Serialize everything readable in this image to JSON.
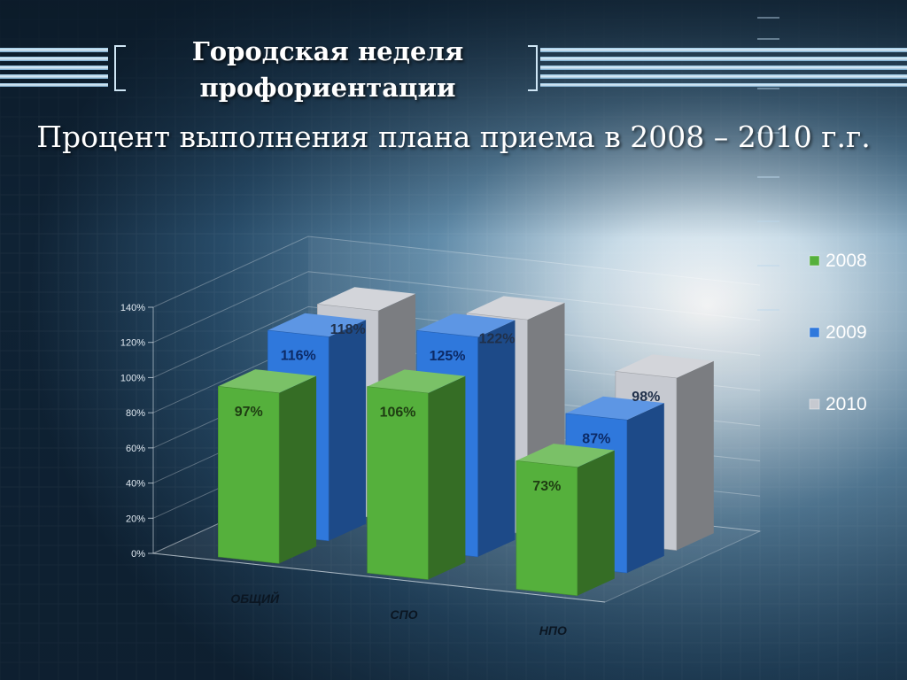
{
  "slide": {
    "title": "Городская неделя профориентации",
    "subtitle": "Процент выполнения плана приема в 2008 – 2010 г.г."
  },
  "colors": {
    "background": "#14324b",
    "series_2008": "#55b03c",
    "series_2009": "#2f78dc",
    "series_2010": "#c6c9d0",
    "label_2008": "#1e3c12",
    "label_2009": "#0c2a66",
    "label_2010": "#20304a"
  },
  "chart_data": {
    "type": "bar",
    "title": "",
    "categories": [
      "ОБЩИЙ",
      "СПО",
      "НПО"
    ],
    "series": [
      {
        "name": "2008",
        "values": [
          97,
          106,
          73
        ],
        "labels": [
          "97%",
          "106%",
          "73%"
        ]
      },
      {
        "name": "2009",
        "values": [
          116,
          125,
          87
        ],
        "labels": [
          "116%",
          "125%",
          "87%"
        ]
      },
      {
        "name": "2010",
        "values": [
          118,
          122,
          98
        ],
        "labels": [
          "118%",
          "122%",
          "98%"
        ]
      }
    ],
    "y_ticks": [
      "0%",
      "20%",
      "40%",
      "60%",
      "80%",
      "100%",
      "120%",
      "140%"
    ],
    "ylim": [
      0,
      140
    ],
    "grid": true,
    "three_d": true,
    "legend_position": "right"
  }
}
